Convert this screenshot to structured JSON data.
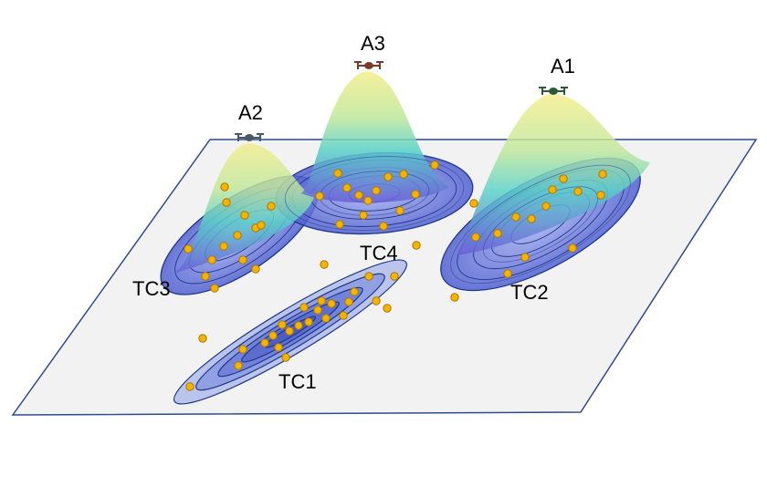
{
  "labels": {
    "a1": "A1",
    "a2": "A2",
    "a3": "A3",
    "tc1": "TC1",
    "tc2": "TC2",
    "tc3": "TC3",
    "tc4": "TC4"
  },
  "colors": {
    "plane_fill": "#f2f2f2",
    "plane_stroke": "#2f4b8a",
    "contour_fill": "#6f7ee0",
    "contour_stroke": "#1f3a8a",
    "point_fill": "#f2b400",
    "point_stroke": "#b07800",
    "peak_top": "#f4ee8a",
    "peak_mid": "#58d2c8",
    "peak_base": "#6a5cd8"
  },
  "icons": {
    "drone": "drone-icon"
  }
}
